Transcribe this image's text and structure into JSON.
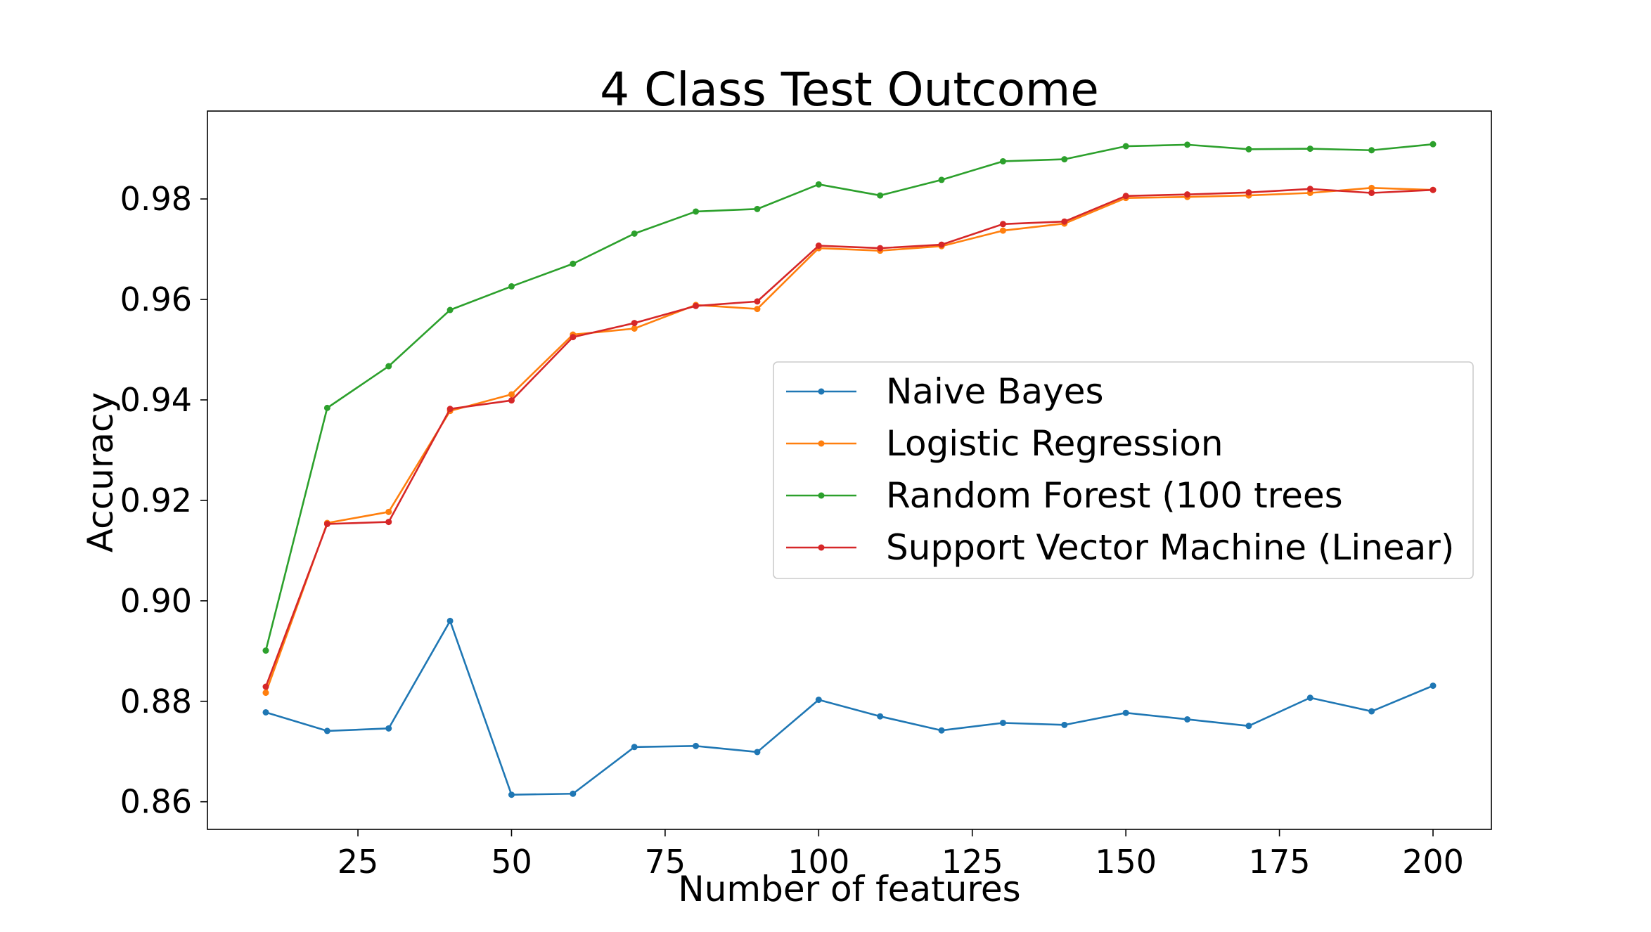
{
  "chart_data": {
    "type": "line",
    "title": "4 Class Test Outcome",
    "xlabel": "Number of features",
    "ylabel": "Accuracy",
    "xlim": [
      0.5,
      209.5
    ],
    "ylim": [
      0.8545,
      0.9975
    ],
    "xticks": [
      25,
      50,
      75,
      100,
      125,
      150,
      175,
      200
    ],
    "xtick_labels": [
      "25",
      "50",
      "75",
      "100",
      "125",
      "150",
      "175",
      "200"
    ],
    "yticks": [
      0.86,
      0.88,
      0.9,
      0.92,
      0.94,
      0.96,
      0.98
    ],
    "ytick_labels": [
      "0.86",
      "0.88",
      "0.90",
      "0.92",
      "0.94",
      "0.96",
      "0.98"
    ],
    "grid": false,
    "legend_position": "center-right",
    "x": [
      10,
      20,
      30,
      40,
      50,
      60,
      70,
      80,
      90,
      100,
      110,
      120,
      130,
      140,
      150,
      160,
      170,
      180,
      190,
      200
    ],
    "series": [
      {
        "name": "Naive Bayes",
        "color": "#1f77b4",
        "values": [
          0.8778,
          0.8741,
          0.8746,
          0.896,
          0.8614,
          0.8616,
          0.8709,
          0.8711,
          0.8699,
          0.8803,
          0.877,
          0.8742,
          0.8757,
          0.8753,
          0.8777,
          0.8764,
          0.8751,
          0.8807,
          0.878,
          0.8831
        ]
      },
      {
        "name": "Logistic Regression",
        "color": "#ff7f0e",
        "values": [
          0.8817,
          0.9155,
          0.9177,
          0.9378,
          0.9411,
          0.953,
          0.9542,
          0.9589,
          0.9581,
          0.9702,
          0.9697,
          0.9706,
          0.9737,
          0.9751,
          0.9802,
          0.9804,
          0.9807,
          0.9812,
          0.9822,
          0.9818
        ]
      },
      {
        "name": "Random Forest (100 trees",
        "color": "#2ca02c",
        "values": [
          0.8901,
          0.9384,
          0.9467,
          0.9579,
          0.9626,
          0.9671,
          0.9731,
          0.9775,
          0.978,
          0.9829,
          0.9807,
          0.9838,
          0.9875,
          0.9879,
          0.9905,
          0.9908,
          0.9899,
          0.99,
          0.9897,
          0.9909
        ]
      },
      {
        "name": "Support Vector Machine (Linear)",
        "color": "#d62728",
        "values": [
          0.8829,
          0.9153,
          0.9157,
          0.9382,
          0.9399,
          0.9525,
          0.9553,
          0.9587,
          0.9596,
          0.9707,
          0.9702,
          0.9709,
          0.975,
          0.9755,
          0.9806,
          0.9809,
          0.9813,
          0.982,
          0.9812,
          0.9818
        ]
      }
    ]
  }
}
